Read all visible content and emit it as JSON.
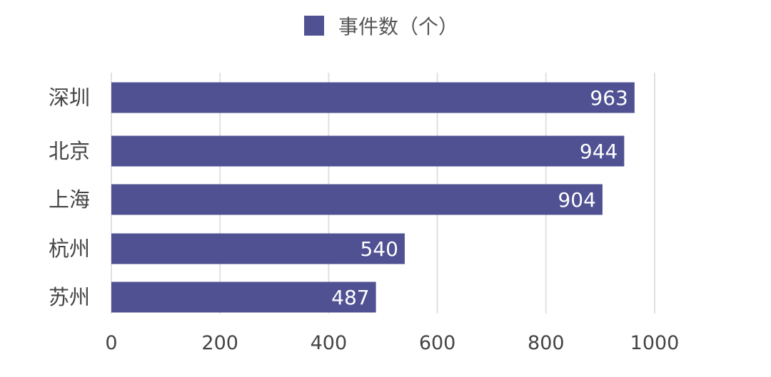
{
  "chart_data": {
    "type": "bar",
    "orientation": "horizontal",
    "categories": [
      "深圳",
      "北京",
      "上海",
      "杭州",
      "苏州"
    ],
    "series": [
      {
        "name": "事件数（个）",
        "values": [
          963,
          944,
          904,
          540,
          487
        ],
        "color": "#4f5193"
      }
    ],
    "xlim": [
      0,
      1000
    ],
    "xticks": [
      "0",
      "200",
      "400",
      "600",
      "800",
      "1000"
    ],
    "grid": "vertical",
    "legend_position": "top-center",
    "data_labels": true
  }
}
